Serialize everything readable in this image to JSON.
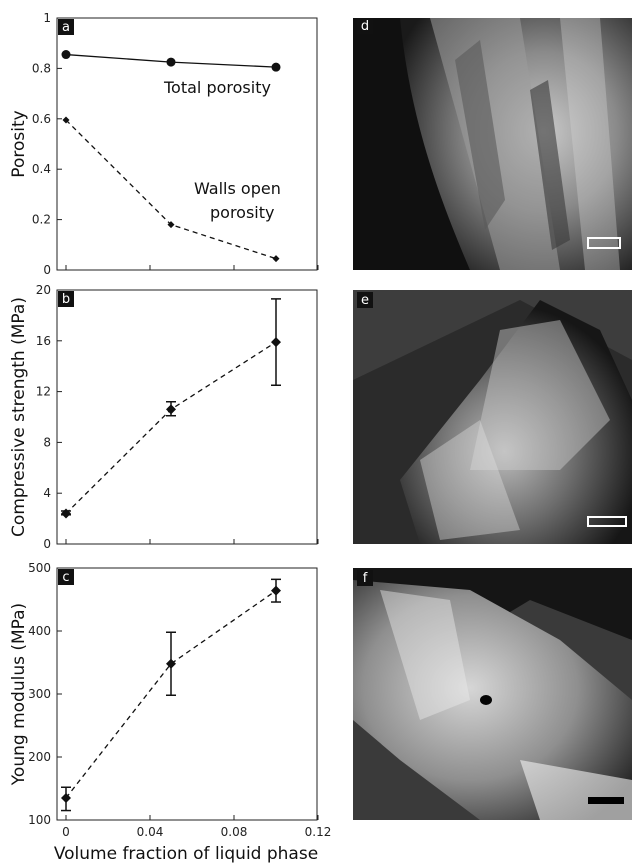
{
  "x_axis": {
    "label": "Volume fraction of liquid phase",
    "ticks": [
      "0",
      "0.04",
      "0.08",
      "0.12"
    ],
    "tick_values": [
      0,
      0.04,
      0.08,
      0.12
    ],
    "xlim": [
      0,
      0.12
    ]
  },
  "chart_data": [
    {
      "type": "line",
      "panel": "a",
      "ylabel": "Porosity",
      "ylim": [
        0,
        1
      ],
      "yticks": [
        "0",
        "0.2",
        "0.4",
        "0.6",
        "0.8",
        "1"
      ],
      "ytick_values": [
        0,
        0.2,
        0.4,
        0.6,
        0.8,
        1
      ],
      "series": [
        {
          "name": "Total porosity",
          "style": "solid",
          "marker": "circle",
          "x": [
            0,
            0.05,
            0.1
          ],
          "y": [
            0.855,
            0.825,
            0.805
          ]
        },
        {
          "name": "Walls open porosity",
          "style": "dashed",
          "marker": "diamond",
          "x": [
            0,
            0.05,
            0.1
          ],
          "y": [
            0.595,
            0.18,
            0.045
          ]
        }
      ],
      "annotations": [
        "Total porosity",
        "Walls open porosity"
      ]
    },
    {
      "type": "line",
      "panel": "b",
      "ylabel": "Compressive strength (MPa)",
      "ylim": [
        0,
        20
      ],
      "yticks": [
        "0",
        "4",
        "8",
        "12",
        "16",
        "20"
      ],
      "ytick_values": [
        0,
        4,
        8,
        12,
        16,
        20
      ],
      "series": [
        {
          "style": "dashed",
          "marker": "diamond",
          "x": [
            0,
            0.05,
            0.1
          ],
          "y": [
            2.4,
            10.6,
            15.9
          ],
          "err_low": [
            2.3,
            10.1,
            12.5
          ],
          "err_high": [
            2.6,
            11.2,
            19.3
          ]
        }
      ]
    },
    {
      "type": "line",
      "panel": "c",
      "ylabel": "Young modulus (MPa)",
      "ylim": [
        100,
        500
      ],
      "yticks": [
        "100",
        "200",
        "300",
        "400",
        "500"
      ],
      "ytick_values": [
        100,
        200,
        300,
        400,
        500
      ],
      "series": [
        {
          "style": "dashed",
          "marker": "diamond",
          "x": [
            0,
            0.05,
            0.1
          ],
          "y": [
            135,
            348,
            464
          ],
          "err_low": [
            115,
            298,
            446
          ],
          "err_high": [
            152,
            398,
            482
          ]
        }
      ]
    }
  ],
  "images": [
    {
      "letter": "d",
      "scale_bar_color": "#ffffff",
      "scale_bar_style": "outline"
    },
    {
      "letter": "e",
      "scale_bar_color": "#ffffff",
      "scale_bar_style": "outline"
    },
    {
      "letter": "f",
      "scale_bar_color": "#000000",
      "scale_bar_style": "filled"
    }
  ]
}
